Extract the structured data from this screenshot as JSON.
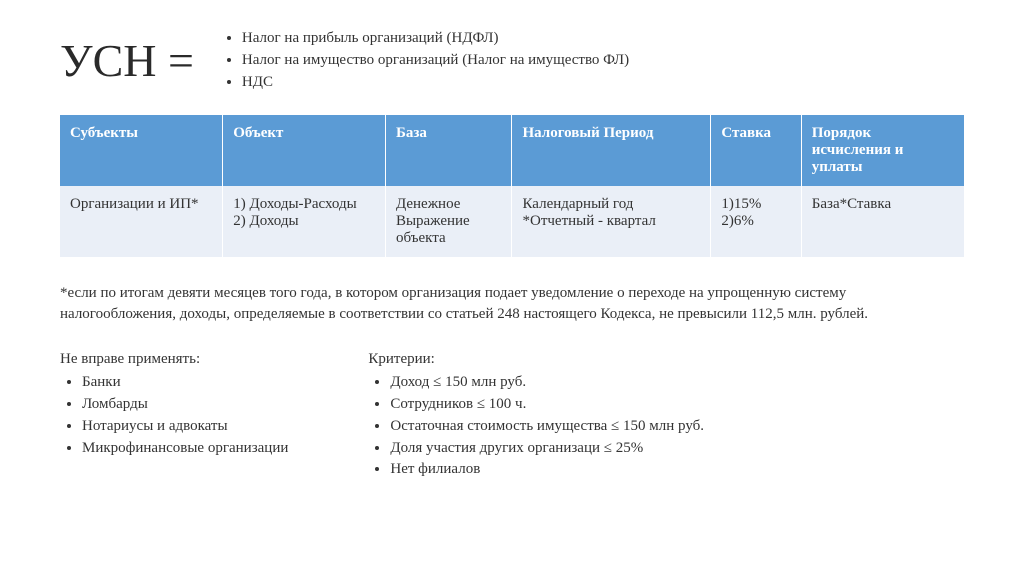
{
  "header": {
    "title": "УСН =",
    "replaces": [
      "Налог на прибыль организаций (НДФЛ)",
      "Налог на имущество организаций (Налог на имущество ФЛ)",
      "НДС"
    ]
  },
  "table": {
    "columns": [
      "Субъекты",
      "Объект",
      "База",
      "Налоговый Период",
      "Ставка",
      "Порядок исчисления и уплаты"
    ],
    "col_widths": [
      "18%",
      "18%",
      "14%",
      "22%",
      "10%",
      "18%"
    ],
    "header_bg": "#5b9bd5",
    "header_fg": "#ffffff",
    "row_bg": "#eaeff7",
    "rows": [
      [
        "Организации и ИП*",
        "1) Доходы-Расходы\n2) Доходы",
        "Денежное Выражение объекта",
        "Календарный год\n*Отчетный - квартал",
        "1)15%\n2)6%",
        "База*Ставка"
      ]
    ]
  },
  "footnote": "*если по итогам девяти месяцев того года, в котором организация подает уведомление о переходе на упрощенную систему налогообложения, доходы, определяемые в соответствии со статьей 248 настоящего Кодекса, не превысили 112,5 млн. рублей.",
  "left_list": {
    "title": "Не вправе применять:",
    "items": [
      "Банки",
      "Ломбарды",
      "Нотариусы и адвокаты",
      "Микрофинансовые организации"
    ]
  },
  "right_list": {
    "title": "Критерии:",
    "items": [
      "Доход ≤ 150 млн руб.",
      "Сотрудников ≤ 100 ч.",
      "Остаточная стоимость имущества ≤ 150 млн руб.",
      "Доля участия других организаци ≤ 25%",
      "Нет филиалов"
    ]
  }
}
